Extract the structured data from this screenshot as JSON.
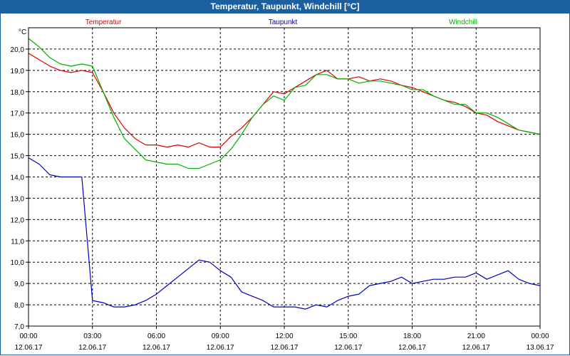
{
  "window": {
    "title": "Temperatur, Taupunkt, Windchill [°C]"
  },
  "colors": {
    "temperature": "#e00000",
    "dewpoint": "#0000c0",
    "windchill": "#00b000",
    "grid": "#000000"
  },
  "chart_data": {
    "type": "line",
    "ylabel": "°C",
    "ylim": [
      7.0,
      21.0
    ],
    "yticks": [
      "7,0",
      "8,0",
      "9,0",
      "10,0",
      "11,0",
      "12,0",
      "13,0",
      "14,0",
      "15,0",
      "16,0",
      "17,0",
      "18,0",
      "19,0",
      "20,0"
    ],
    "xticks": [
      {
        "time": "00:00",
        "date": "12.06.17"
      },
      {
        "time": "03:00",
        "date": "12.06.17"
      },
      {
        "time": "06:00",
        "date": "12.06.17"
      },
      {
        "time": "09:00",
        "date": "12.06.17"
      },
      {
        "time": "12:00",
        "date": "12.06.17"
      },
      {
        "time": "15:00",
        "date": "12.06.17"
      },
      {
        "time": "18:00",
        "date": "12.06.17"
      },
      {
        "time": "21:00",
        "date": "12.06.17"
      },
      {
        "time": "00:00",
        "date": "13.06.17"
      }
    ],
    "xlim_hours": [
      0,
      24
    ],
    "grid": true,
    "legend": "top",
    "x_hours": [
      0,
      0.5,
      1,
      1.5,
      2,
      2.5,
      3,
      3.5,
      4,
      4.5,
      5,
      5.5,
      6,
      6.5,
      7,
      7.5,
      8,
      8.5,
      9,
      9.5,
      10,
      10.5,
      11,
      11.5,
      12,
      12.5,
      13,
      13.5,
      14,
      14.5,
      15,
      15.5,
      16,
      16.5,
      17,
      17.5,
      18,
      18.5,
      19,
      19.5,
      20,
      20.5,
      21,
      21.5,
      22,
      22.5,
      23,
      23.5,
      24
    ],
    "series": [
      {
        "name": "Temperatur",
        "values": [
          19.8,
          19.5,
          19.2,
          19.0,
          18.9,
          19.0,
          18.9,
          18.0,
          17.0,
          16.3,
          15.8,
          15.5,
          15.5,
          15.4,
          15.5,
          15.4,
          15.6,
          15.4,
          15.4,
          15.9,
          16.3,
          16.8,
          17.4,
          18.0,
          17.9,
          18.2,
          18.5,
          18.8,
          19.0,
          18.6,
          18.6,
          18.7,
          18.5,
          18.6,
          18.5,
          18.3,
          18.2,
          18.0,
          17.8,
          17.6,
          17.5,
          17.3,
          17.0,
          16.9,
          16.6,
          16.4,
          16.2,
          16.1,
          16.0
        ]
      },
      {
        "name": "Taupunkt",
        "values": [
          14.9,
          14.6,
          14.1,
          14.0,
          14.0,
          14.0,
          8.2,
          8.1,
          7.9,
          7.9,
          8.0,
          8.2,
          8.5,
          8.9,
          9.3,
          9.7,
          10.1,
          10.0,
          9.6,
          9.3,
          8.6,
          8.4,
          8.2,
          7.9,
          7.9,
          7.9,
          7.8,
          8.0,
          7.9,
          8.2,
          8.4,
          8.5,
          8.9,
          9.0,
          9.1,
          9.3,
          9.0,
          9.1,
          9.2,
          9.2,
          9.3,
          9.3,
          9.5,
          9.2,
          9.4,
          9.6,
          9.2,
          9.0,
          8.9
        ]
      },
      {
        "name": "Windchill",
        "values": [
          20.5,
          20.1,
          19.6,
          19.3,
          19.2,
          19.3,
          19.2,
          18.0,
          16.8,
          15.8,
          15.3,
          14.8,
          14.7,
          14.6,
          14.6,
          14.4,
          14.4,
          14.6,
          14.8,
          15.3,
          16.0,
          16.8,
          17.4,
          17.8,
          17.6,
          18.2,
          18.3,
          18.8,
          18.8,
          18.6,
          18.6,
          18.4,
          18.5,
          18.5,
          18.4,
          18.3,
          18.1,
          18.1,
          17.8,
          17.6,
          17.4,
          17.4,
          17.0,
          17.0,
          16.8,
          16.5,
          16.2,
          16.1,
          16.0
        ]
      }
    ]
  }
}
